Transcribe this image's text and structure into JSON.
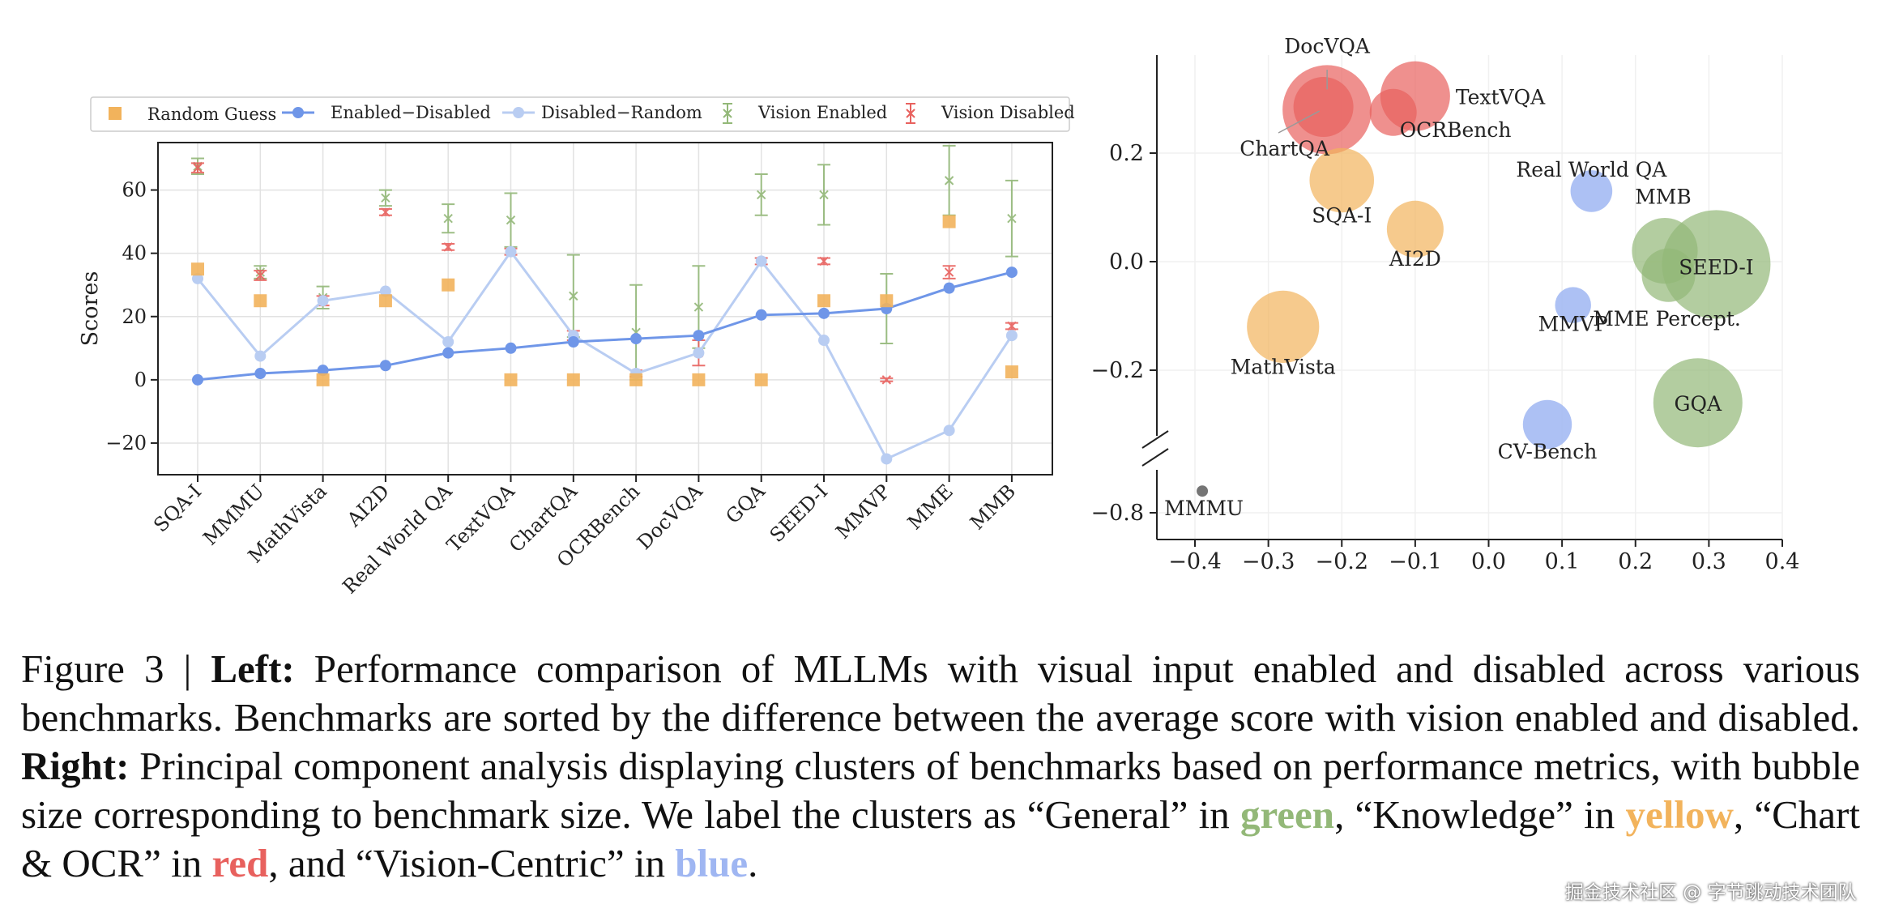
{
  "left": {
    "ylabel": "Scores",
    "legend": [
      "Random Guess",
      "Enabled−Disabled",
      "Disabled−Random",
      "Vision Enabled",
      "Vision Disabled"
    ],
    "yticks": [
      "60",
      "40",
      "20",
      "0",
      "−20"
    ]
  },
  "right": {
    "xticks": [
      "−0.4",
      "−0.3",
      "−0.2",
      "−0.1",
      "0.0",
      "0.1",
      "0.2",
      "0.3",
      "0.4"
    ],
    "yticks": [
      "0.2",
      "0.0",
      "−0.2",
      "−0.8"
    ]
  },
  "caption": {
    "figure_label": "Figure 3 | ",
    "left_label": "Left:",
    "text1": " Performance comparison of MLLMs with visual input enabled and disabled across various benchmarks. Benchmarks are sorted by the difference between the average score with vision enabled and disabled. ",
    "right_label": "Right:",
    "text2": " Principal component analysis displaying clusters of benchmarks based on performance metrics, with bubble size corresponding to benchmark size. We label the clusters as “General” in ",
    "green": "green",
    "text3": ", “Knowledge” in ",
    "yellow": "yellow",
    "text4": ", “Chart & OCR” in ",
    "red": "red",
    "text5": ", and “Vision-Centric” in ",
    "blue": "blue",
    "text6": "."
  },
  "watermark": "掘金技术社区 @ 字节跳动技术团队",
  "colors": {
    "random_guess": "#f2b35c",
    "enabled_disabled": "#6f96e8",
    "disabled_random": "#b9cdf2",
    "vision_enabled": "#93b878",
    "vision_disabled": "#e8615e",
    "general": "#93b878",
    "knowledge": "#f2b35c",
    "chart_ocr": "#e8615e",
    "vision_centric": "#9fb6f2",
    "other": "#666666"
  },
  "chart_data": [
    {
      "type": "line",
      "ylabel": "Scores",
      "ylim": [
        -30,
        75
      ],
      "grid": true,
      "legend_position": "top",
      "categories": [
        "SQA-I",
        "MMMU",
        "MathVista",
        "AI2D",
        "Real World QA",
        "TextVQA",
        "ChartQA",
        "OCRBench",
        "DocVQA",
        "GQA",
        "SEED-I",
        "MMVP",
        "MME",
        "MMB"
      ],
      "series": [
        {
          "name": "Random Guess",
          "kind": "marker",
          "values": [
            35,
            25,
            0,
            25,
            30,
            0,
            0,
            0,
            0,
            0,
            25,
            25,
            50,
            2.5
          ]
        },
        {
          "name": "Enabled−Disabled",
          "kind": "line",
          "values": [
            0,
            2,
            3,
            4.5,
            8.5,
            10,
            12,
            13,
            14,
            20.5,
            21,
            22.5,
            29,
            34
          ]
        },
        {
          "name": "Disabled−Random",
          "kind": "line",
          "values": [
            32,
            7.5,
            25,
            28,
            12,
            40.5,
            14,
            2,
            8.5,
            37.5,
            12.5,
            -25,
            -16,
            14
          ]
        },
        {
          "name": "Vision Enabled",
          "kind": "errorbar",
          "values": [
            67.5,
            34,
            26,
            57.5,
            51,
            50.5,
            26.5,
            15,
            23,
            58.5,
            58.5,
            22.5,
            63,
            51
          ],
          "err": [
            2.5,
            2,
            3.5,
            2.5,
            4.5,
            8.5,
            13,
            15,
            13,
            6.5,
            9.5,
            11,
            11,
            12
          ]
        },
        {
          "name": "Vision Disabled",
          "kind": "errorbar",
          "values": [
            67,
            33,
            25,
            53,
            42,
            40.5,
            14,
            2,
            8.5,
            37.5,
            37.5,
            0,
            34,
            17
          ],
          "err": [
            1.5,
            1.5,
            1.5,
            1,
            1,
            1,
            1.5,
            1,
            4,
            1,
            1,
            0.5,
            2,
            1
          ]
        }
      ]
    },
    {
      "type": "scatter",
      "xlim": [
        -0.45,
        0.4
      ],
      "ylim": [
        -0.85,
        0.38
      ],
      "y_axis_break": [
        -0.62,
        -0.38
      ],
      "grid": true,
      "points": [
        {
          "label": "DocVQA",
          "x": -0.22,
          "y": 0.28,
          "size": 1.0,
          "cluster": "chart_ocr"
        },
        {
          "label": "ChartQA",
          "x": -0.225,
          "y": 0.285,
          "size": 0.55,
          "cluster": "chart_ocr"
        },
        {
          "label": "OCRBench",
          "x": -0.13,
          "y": 0.275,
          "size": 0.35,
          "cluster": "chart_ocr"
        },
        {
          "label": "TextVQA",
          "x": -0.1,
          "y": 0.305,
          "size": 0.7,
          "cluster": "chart_ocr"
        },
        {
          "label": "SQA-I",
          "x": -0.2,
          "y": 0.15,
          "size": 0.62,
          "cluster": "knowledge"
        },
        {
          "label": "AI2D",
          "x": -0.1,
          "y": 0.06,
          "size": 0.5,
          "cluster": "knowledge"
        },
        {
          "label": "MathVista",
          "x": -0.28,
          "y": -0.12,
          "size": 0.74,
          "cluster": "knowledge"
        },
        {
          "label": "Real World QA",
          "x": 0.14,
          "y": 0.13,
          "size": 0.27,
          "cluster": "vision_centric"
        },
        {
          "label": "MMVP",
          "x": 0.115,
          "y": -0.08,
          "size": 0.18,
          "cluster": "vision_centric"
        },
        {
          "label": "CV-Bench",
          "x": 0.08,
          "y": -0.3,
          "size": 0.38,
          "cluster": "vision_centric"
        },
        {
          "label": "MMB",
          "x": 0.24,
          "y": 0.02,
          "size": 0.64,
          "cluster": "general"
        },
        {
          "label": "SEED-I",
          "x": 0.31,
          "y": -0.005,
          "size": 1.3,
          "cluster": "general"
        },
        {
          "label": "MME Percept.",
          "x": 0.245,
          "y": -0.025,
          "size": 0.45,
          "cluster": "general"
        },
        {
          "label": "GQA",
          "x": 0.285,
          "y": -0.26,
          "size": 1.0,
          "cluster": "general"
        },
        {
          "label": "MMMU",
          "x": -0.39,
          "y": -0.76,
          "size": 0.18,
          "cluster": "other"
        }
      ]
    }
  ]
}
